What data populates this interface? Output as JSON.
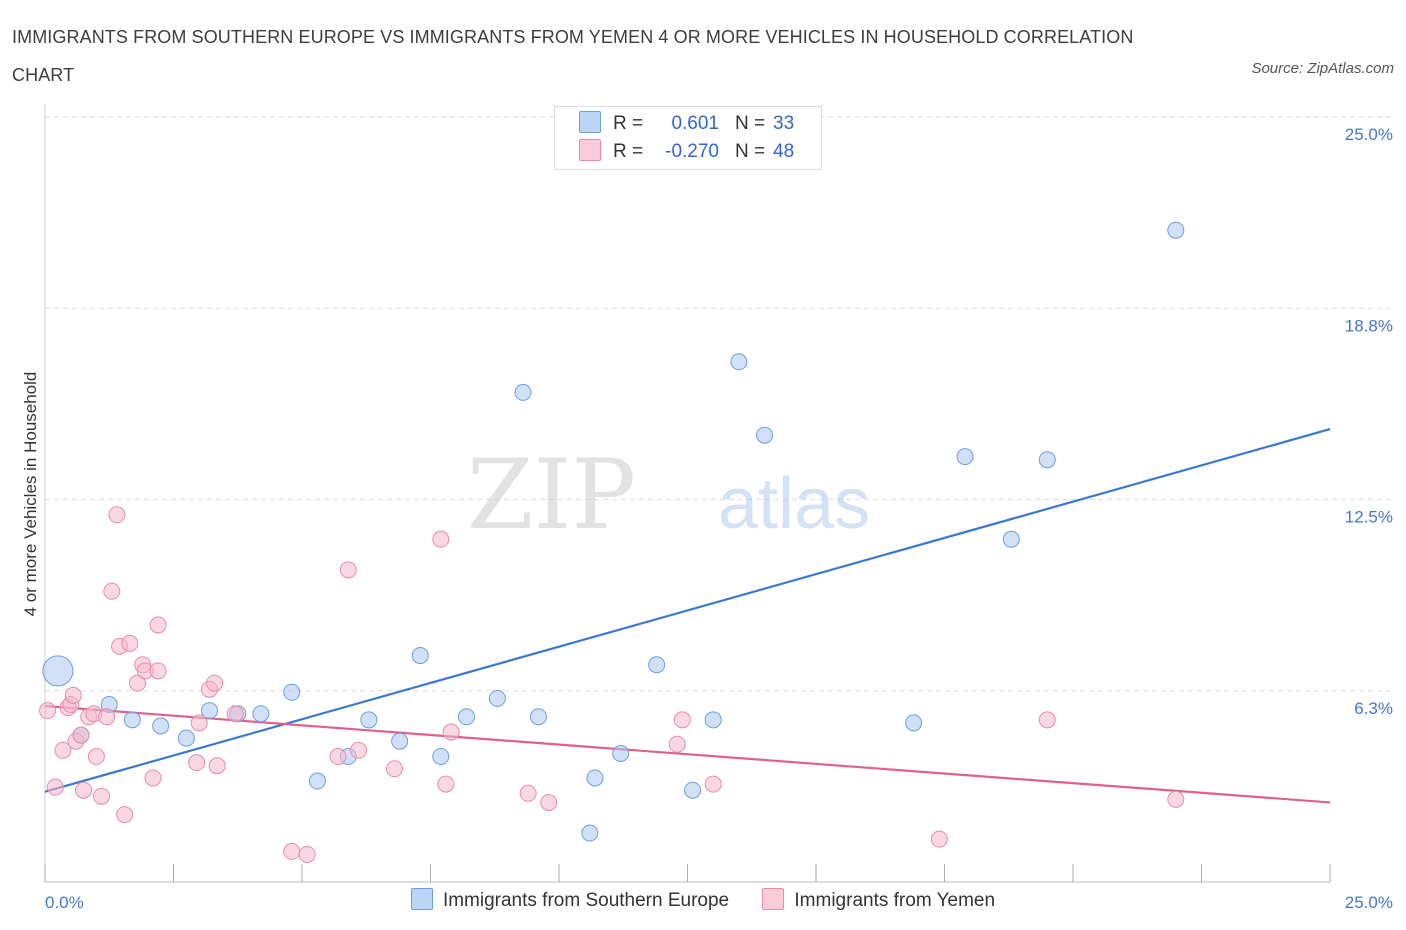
{
  "title": "IMMIGRANTS FROM SOUTHERN EUROPE VS IMMIGRANTS FROM YEMEN 4 OR MORE VEHICLES IN HOUSEHOLD CORRELATION CHART",
  "source": "Source: ZipAtlas.com",
  "watermark": {
    "zip": "ZIP",
    "atlas": "atlas"
  },
  "colors": {
    "blue_fill": "#aac8f0",
    "blue_stroke": "#6f9ee0",
    "blue_line": "#3a78d4",
    "pink_fill": "#f5b8cb",
    "pink_stroke": "#e88ca8",
    "pink_line": "#e0608c",
    "grid": "#dddddd",
    "tick_text": "#4477cc"
  },
  "legend": {
    "rows": [
      {
        "r_label": "R =",
        "r_value": "0.601",
        "n_label": "N =",
        "n_value": "33",
        "swatch": "blue"
      },
      {
        "r_label": "R =",
        "r_value": "-0.270",
        "n_label": "N =",
        "n_value": "48",
        "swatch": "pink"
      }
    ]
  },
  "bottom_legend": [
    "Immigrants from Southern Europe",
    "Immigrants from Yemen"
  ],
  "chart_data": {
    "type": "scatter",
    "title": "IMMIGRANTS FROM SOUTHERN EUROPE VS IMMIGRANTS FROM YEMEN 4 OR MORE VEHICLES IN HOUSEHOLD CORRELATION CHART",
    "xlabel": "",
    "ylabel": "4 or more Vehicles in Household",
    "xlim": [
      0,
      25
    ],
    "ylim": [
      0,
      25
    ],
    "x_tick_labels": [
      {
        "value": 0,
        "label": "0.0%"
      },
      {
        "value": 25,
        "label": "25.0%"
      }
    ],
    "y_tick_labels": [
      {
        "value": 6.25,
        "label": "6.3%"
      },
      {
        "value": 12.5,
        "label": "12.5%"
      },
      {
        "value": 18.75,
        "label": "18.8%"
      },
      {
        "value": 25,
        "label": "25.0%"
      }
    ],
    "grid": true,
    "legend_position": "top-center",
    "series": [
      {
        "name": "Immigrants from Southern Europe",
        "color": "blue",
        "r": 0.601,
        "n": 33,
        "trend": {
          "x": [
            0,
            25
          ],
          "y": [
            2.95,
            14.8
          ]
        },
        "points": [
          {
            "x": 0.25,
            "y": 6.9,
            "size": "large"
          },
          {
            "x": 0.7,
            "y": 4.8
          },
          {
            "x": 1.25,
            "y": 5.8
          },
          {
            "x": 1.7,
            "y": 5.3
          },
          {
            "x": 2.25,
            "y": 5.1
          },
          {
            "x": 2.75,
            "y": 4.7
          },
          {
            "x": 3.2,
            "y": 5.6
          },
          {
            "x": 3.75,
            "y": 5.5
          },
          {
            "x": 4.2,
            "y": 5.5
          },
          {
            "x": 4.8,
            "y": 6.2
          },
          {
            "x": 5.3,
            "y": 3.3
          },
          {
            "x": 5.9,
            "y": 4.1
          },
          {
            "x": 6.3,
            "y": 5.3
          },
          {
            "x": 6.9,
            "y": 4.6
          },
          {
            "x": 7.3,
            "y": 7.4
          },
          {
            "x": 7.7,
            "y": 4.1
          },
          {
            "x": 8.2,
            "y": 5.4
          },
          {
            "x": 8.8,
            "y": 6.0
          },
          {
            "x": 9.3,
            "y": 16.0
          },
          {
            "x": 9.6,
            "y": 5.4
          },
          {
            "x": 10.6,
            "y": 1.6
          },
          {
            "x": 10.7,
            "y": 3.4
          },
          {
            "x": 11.2,
            "y": 4.2
          },
          {
            "x": 11.9,
            "y": 7.1
          },
          {
            "x": 12.6,
            "y": 3.0
          },
          {
            "x": 13.0,
            "y": 5.3
          },
          {
            "x": 13.5,
            "y": 17.0
          },
          {
            "x": 14.0,
            "y": 14.6
          },
          {
            "x": 16.9,
            "y": 5.2
          },
          {
            "x": 17.9,
            "y": 13.9
          },
          {
            "x": 18.8,
            "y": 11.2
          },
          {
            "x": 19.5,
            "y": 13.8
          },
          {
            "x": 22.0,
            "y": 21.3
          }
        ]
      },
      {
        "name": "Immigrants from Yemen",
        "color": "pink",
        "r": -0.27,
        "n": 48,
        "trend": {
          "x": [
            0,
            25
          ],
          "y": [
            5.75,
            2.6
          ]
        },
        "points": [
          {
            "x": 0.05,
            "y": 5.6
          },
          {
            "x": 0.2,
            "y": 3.1
          },
          {
            "x": 0.35,
            "y": 4.3
          },
          {
            "x": 0.45,
            "y": 5.7
          },
          {
            "x": 0.5,
            "y": 5.8
          },
          {
            "x": 0.55,
            "y": 6.1
          },
          {
            "x": 0.6,
            "y": 4.6
          },
          {
            "x": 0.7,
            "y": 4.8
          },
          {
            "x": 0.75,
            "y": 3.0
          },
          {
            "x": 0.85,
            "y": 5.4
          },
          {
            "x": 0.95,
            "y": 5.5
          },
          {
            "x": 1.0,
            "y": 4.1
          },
          {
            "x": 1.1,
            "y": 2.8
          },
          {
            "x": 1.2,
            "y": 5.4
          },
          {
            "x": 1.3,
            "y": 9.5
          },
          {
            "x": 1.4,
            "y": 12.0
          },
          {
            "x": 1.45,
            "y": 7.7
          },
          {
            "x": 1.55,
            "y": 2.2
          },
          {
            "x": 1.65,
            "y": 7.8
          },
          {
            "x": 1.8,
            "y": 6.5
          },
          {
            "x": 1.9,
            "y": 7.1
          },
          {
            "x": 1.95,
            "y": 6.9
          },
          {
            "x": 2.1,
            "y": 3.4
          },
          {
            "x": 2.2,
            "y": 6.9
          },
          {
            "x": 2.2,
            "y": 8.4
          },
          {
            "x": 2.95,
            "y": 3.9
          },
          {
            "x": 3.0,
            "y": 5.2
          },
          {
            "x": 3.2,
            "y": 6.3
          },
          {
            "x": 3.3,
            "y": 6.5
          },
          {
            "x": 3.35,
            "y": 3.8
          },
          {
            "x": 3.7,
            "y": 5.5
          },
          {
            "x": 4.8,
            "y": 1.0
          },
          {
            "x": 5.1,
            "y": 0.9
          },
          {
            "x": 5.7,
            "y": 4.1
          },
          {
            "x": 5.9,
            "y": 10.2
          },
          {
            "x": 6.1,
            "y": 4.3
          },
          {
            "x": 6.8,
            "y": 3.7
          },
          {
            "x": 7.7,
            "y": 11.2
          },
          {
            "x": 7.8,
            "y": 3.2
          },
          {
            "x": 7.9,
            "y": 4.9
          },
          {
            "x": 9.4,
            "y": 2.9
          },
          {
            "x": 9.8,
            "y": 2.6
          },
          {
            "x": 12.3,
            "y": 4.5
          },
          {
            "x": 12.4,
            "y": 5.3
          },
          {
            "x": 13.0,
            "y": 3.2
          },
          {
            "x": 17.4,
            "y": 1.4
          },
          {
            "x": 19.5,
            "y": 5.3
          },
          {
            "x": 22.0,
            "y": 2.7
          }
        ]
      }
    ]
  }
}
